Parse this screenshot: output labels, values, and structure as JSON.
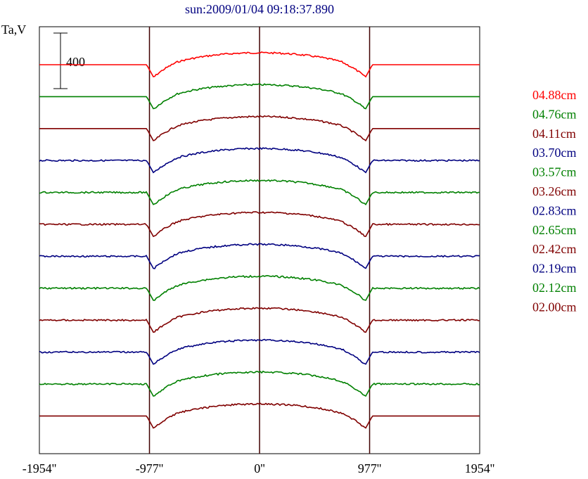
{
  "chart_data": {
    "type": "line",
    "title": "sun:2009/01/04 09:18:37.890",
    "ylabel": "Ta,V",
    "scale_bar_label": "400",
    "x_ticks": [
      "-1954''",
      "-977''",
      "0''",
      "977''",
      "1954''"
    ],
    "xlim": [
      -1954,
      1954
    ],
    "vertical_lines": [
      -977,
      0,
      977
    ],
    "series": [
      {
        "name": "04.88cm",
        "color": "#ff0000"
      },
      {
        "name": "04.76cm",
        "color": "#008000"
      },
      {
        "name": "04.11cm",
        "color": "#800000"
      },
      {
        "name": "03.70cm",
        "color": "#000080"
      },
      {
        "name": "03.57cm",
        "color": "#008000"
      },
      {
        "name": "03.26cm",
        "color": "#800000"
      },
      {
        "name": "02.83cm",
        "color": "#000080"
      },
      {
        "name": "02.65cm",
        "color": "#008000"
      },
      {
        "name": "02.42cm",
        "color": "#800000"
      },
      {
        "name": "02.19cm",
        "color": "#000080"
      },
      {
        "name": "02.12cm",
        "color": "#008000"
      },
      {
        "name": "02.00cm",
        "color": "#800000"
      }
    ]
  }
}
